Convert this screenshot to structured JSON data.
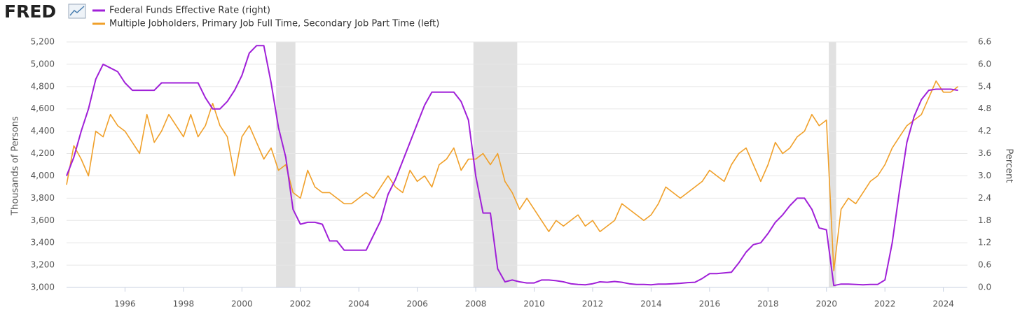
{
  "chart_data": {
    "type": "line",
    "logo": "FRED",
    "ylabel": "Thousands of Persons",
    "y2label": "Percent",
    "x": [
      1994,
      1994.25,
      1994.5,
      1994.75,
      1995,
      1995.25,
      1995.5,
      1995.75,
      1996,
      1996.25,
      1996.5,
      1996.75,
      1997,
      1997.25,
      1997.5,
      1997.75,
      1998,
      1998.25,
      1998.5,
      1998.75,
      1999,
      1999.25,
      1999.5,
      1999.75,
      2000,
      2000.25,
      2000.5,
      2000.75,
      2001,
      2001.25,
      2001.5,
      2001.75,
      2002,
      2002.25,
      2002.5,
      2002.75,
      2003,
      2003.25,
      2003.5,
      2003.75,
      2004,
      2004.25,
      2004.5,
      2004.75,
      2005,
      2005.25,
      2005.5,
      2005.75,
      2006,
      2006.25,
      2006.5,
      2006.75,
      2007,
      2007.25,
      2007.5,
      2007.75,
      2008,
      2008.25,
      2008.5,
      2008.75,
      2009,
      2009.25,
      2009.5,
      2009.75,
      2010,
      2010.25,
      2010.5,
      2010.75,
      2011,
      2011.25,
      2011.5,
      2011.75,
      2012,
      2012.25,
      2012.5,
      2012.75,
      2013,
      2013.25,
      2013.5,
      2013.75,
      2014,
      2014.25,
      2014.5,
      2014.75,
      2015,
      2015.25,
      2015.5,
      2015.75,
      2016,
      2016.25,
      2016.5,
      2016.75,
      2017,
      2017.25,
      2017.5,
      2017.75,
      2018,
      2018.25,
      2018.5,
      2018.75,
      2019,
      2019.25,
      2019.5,
      2019.75,
      2020,
      2020.25,
      2020.5,
      2020.75,
      2021,
      2021.25,
      2021.5,
      2021.75,
      2022,
      2022.25,
      2022.5,
      2022.75,
      2023,
      2023.25,
      2023.5,
      2023.75,
      2024,
      2024.25,
      2024.5
    ],
    "series": [
      {
        "name": "Federal Funds Effective Rate (right)",
        "color": "#a020d8",
        "axis": "y2",
        "values": [
          3.0,
          3.5,
          4.2,
          4.8,
          5.6,
          6.0,
          5.9,
          5.8,
          5.5,
          5.3,
          5.3,
          5.3,
          5.3,
          5.5,
          5.5,
          5.5,
          5.5,
          5.5,
          5.5,
          5.1,
          4.8,
          4.8,
          5.0,
          5.3,
          5.7,
          6.3,
          6.5,
          6.5,
          5.5,
          4.3,
          3.5,
          2.1,
          1.7,
          1.75,
          1.75,
          1.7,
          1.25,
          1.25,
          1.0,
          1.0,
          1.0,
          1.0,
          1.4,
          1.8,
          2.5,
          2.9,
          3.4,
          3.9,
          4.4,
          4.9,
          5.25,
          5.25,
          5.25,
          5.25,
          5.0,
          4.5,
          3.0,
          2.0,
          2.0,
          0.5,
          0.15,
          0.2,
          0.15,
          0.12,
          0.12,
          0.2,
          0.2,
          0.18,
          0.15,
          0.1,
          0.08,
          0.07,
          0.1,
          0.15,
          0.14,
          0.16,
          0.14,
          0.1,
          0.08,
          0.08,
          0.07,
          0.09,
          0.09,
          0.1,
          0.11,
          0.13,
          0.14,
          0.24,
          0.37,
          0.37,
          0.39,
          0.41,
          0.66,
          0.95,
          1.15,
          1.2,
          1.45,
          1.75,
          1.95,
          2.2,
          2.4,
          2.4,
          2.1,
          1.6,
          1.55,
          0.05,
          0.09,
          0.09,
          0.08,
          0.07,
          0.08,
          0.08,
          0.2,
          1.2,
          2.6,
          3.9,
          4.6,
          5.05,
          5.3,
          5.33,
          5.33,
          5.33,
          5.3
        ]
      },
      {
        "name": "Multiple Jobholders, Primary Job Full Time, Secondary Job Part Time (left)",
        "color": "#f0a02a",
        "axis": "y",
        "values": [
          3920,
          4270,
          4150,
          4000,
          4400,
          4350,
          4550,
          4450,
          4400,
          4300,
          4200,
          4550,
          4300,
          4400,
          4550,
          4450,
          4350,
          4550,
          4350,
          4450,
          4650,
          4450,
          4350,
          4000,
          4350,
          4450,
          4300,
          4150,
          4250,
          4050,
          4100,
          3850,
          3800,
          4050,
          3900,
          3850,
          3850,
          3800,
          3750,
          3750,
          3800,
          3850,
          3800,
          3900,
          4000,
          3900,
          3850,
          4050,
          3950,
          4000,
          3900,
          4100,
          4150,
          4250,
          4050,
          4150,
          4150,
          4200,
          4100,
          4200,
          3950,
          3850,
          3700,
          3800,
          3700,
          3600,
          3500,
          3600,
          3550,
          3600,
          3650,
          3550,
          3600,
          3500,
          3550,
          3600,
          3750,
          3700,
          3650,
          3600,
          3650,
          3750,
          3900,
          3850,
          3800,
          3850,
          3900,
          3950,
          4050,
          4000,
          3950,
          4100,
          4200,
          4250,
          4100,
          3950,
          4100,
          4300,
          4200,
          4250,
          4350,
          4400,
          4550,
          4450,
          4500,
          3150,
          3700,
          3800,
          3750,
          3850,
          3950,
          4000,
          4100,
          4250,
          4350,
          4450,
          4500,
          4550,
          4700,
          4850,
          4750,
          4750,
          4800
        ]
      }
    ],
    "recessions": [
      [
        2001.17,
        2001.83
      ],
      [
        2007.92,
        2009.42
      ],
      [
        2020.08,
        2020.33
      ]
    ],
    "xlim": [
      1994,
      2024.8
    ],
    "xticks": [
      1996,
      1998,
      2000,
      2002,
      2004,
      2006,
      2008,
      2010,
      2012,
      2014,
      2016,
      2018,
      2020,
      2022,
      2024
    ],
    "ylim": [
      3000,
      5200
    ],
    "yticks": [
      {
        "value": 3000,
        "label": "3,000"
      },
      {
        "value": 3200,
        "label": "3,200"
      },
      {
        "value": 3400,
        "label": "3,400"
      },
      {
        "value": 3600,
        "label": "3,600"
      },
      {
        "value": 3800,
        "label": "3,800"
      },
      {
        "value": 4000,
        "label": "4,000"
      },
      {
        "value": 4200,
        "label": "4,200"
      },
      {
        "value": 4400,
        "label": "4,400"
      },
      {
        "value": 4600,
        "label": "4,600"
      },
      {
        "value": 4800,
        "label": "4,800"
      },
      {
        "value": 5000,
        "label": "5,000"
      },
      {
        "value": 5200,
        "label": "5,200"
      }
    ],
    "y2lim": [
      0,
      6.6
    ],
    "y2ticks": [
      {
        "value": 0,
        "label": "0.0"
      },
      0.6,
      1.2,
      1.8,
      2.4,
      {
        "value": 3,
        "label": "3.0"
      },
      3.6,
      4.2,
      4.8,
      5.4,
      {
        "value": 6,
        "label": "6.0"
      },
      6.6
    ],
    "grid": true
  }
}
